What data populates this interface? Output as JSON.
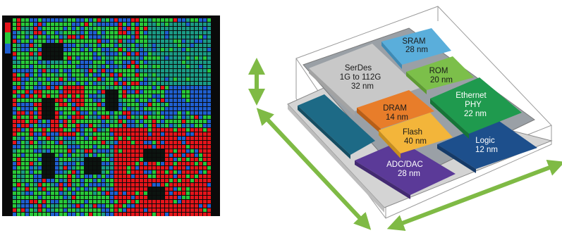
{
  "heatmap": {
    "colors": {
      "frame": "#0a0a0a",
      "green": "#28c83a",
      "red": "#e5141a",
      "blue": "#1f5fd0",
      "teal": "#1a9a85",
      "hole": "#0c1410"
    }
  },
  "package": {
    "arrow_color": "#7fba45",
    "blocks": [
      {
        "id": "serdes",
        "lines": [
          "SerDes",
          "1G to 112G",
          "32 nm"
        ],
        "color": "#c8c8c8",
        "text_color": "#1a1a1a"
      },
      {
        "id": "sram",
        "lines": [
          "SRAM",
          "28 nm"
        ],
        "color": "#5aaedb",
        "text_color": "#1a1a1a"
      },
      {
        "id": "rom",
        "lines": [
          "ROM",
          "20 nm"
        ],
        "color": "#7cbf4a",
        "text_color": "#1a1a1a"
      },
      {
        "id": "dram",
        "lines": [
          "DRAM",
          "14 nm"
        ],
        "color": "#e87d2a",
        "text_color": "#1a1a1a"
      },
      {
        "id": "ethernet",
        "lines": [
          "Ethernet",
          "PHY",
          "22 nm"
        ],
        "color": "#1f9a4e",
        "text_color": "#ffffff"
      },
      {
        "id": "flash",
        "lines": [
          "Flash",
          "40 nm"
        ],
        "color": "#f3b53a",
        "text_color": "#1a1a1a"
      },
      {
        "id": "logic",
        "lines": [
          "Logic",
          "12 nm"
        ],
        "color": "#1d4f8c",
        "text_color": "#ffffff"
      },
      {
        "id": "adc",
        "lines": [
          "ADC/DAC",
          "28 nm"
        ],
        "color": "#5b3a98",
        "text_color": "#ffffff"
      },
      {
        "id": "analog",
        "lines": [],
        "color": "#1d6a86",
        "text_color": "#ffffff"
      }
    ]
  }
}
